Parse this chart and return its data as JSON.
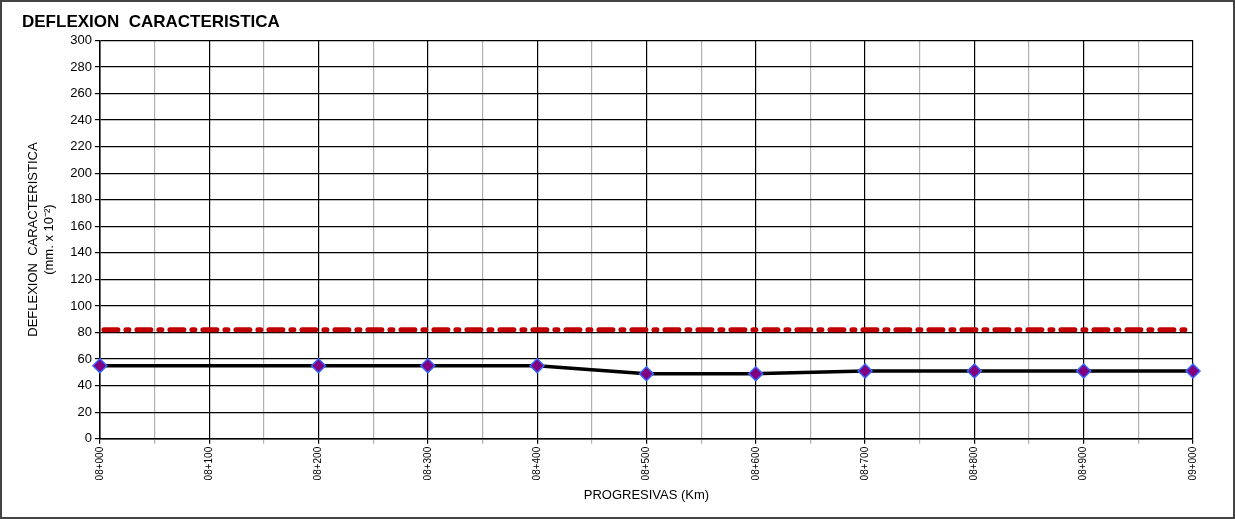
{
  "chart_data": {
    "type": "line",
    "title": "DEFLEXION  CARACTERISTICA",
    "xlabel": "PROGRESIVAS (Km)",
    "ylabel": "DEFLEXION  CARACTERISTICA\n(mm. x 10⁻²)",
    "categories": [
      "08+000",
      null,
      "08+100",
      null,
      "08+200",
      null,
      "08+300",
      null,
      "08+400",
      null,
      "08+500",
      null,
      "08+600",
      null,
      "08+700",
      null,
      "08+800",
      null,
      "08+900",
      null,
      "09+000"
    ],
    "series": [
      {
        "color": "#000000",
        "values": [
          55,
          null,
          null,
          null,
          55,
          null,
          55,
          null,
          55,
          null,
          49,
          null,
          49,
          null,
          51,
          null,
          51,
          null,
          51,
          null,
          51
        ]
      }
    ],
    "ylim": [
      0,
      300
    ],
    "yticks": [
      0,
      20,
      40,
      60,
      80,
      100,
      120,
      140,
      160,
      180,
      200,
      220,
      240,
      260,
      280,
      300
    ],
    "ref_lines": [
      {
        "axis": "y",
        "value": 82,
        "label": null,
        "color": "#c00000",
        "line_style": "dashed"
      }
    ],
    "grid": true,
    "legend": false,
    "marker": "diamond",
    "line_style": "solid"
  }
}
